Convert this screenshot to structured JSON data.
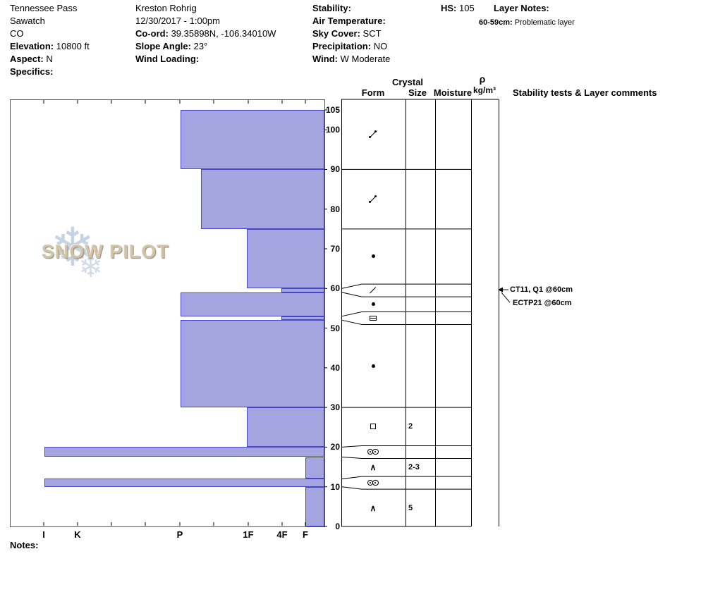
{
  "header": {
    "location": {
      "name": "Tennessee Pass",
      "range": "Sawatch",
      "state": "CO",
      "elevation_label": "Elevation:",
      "elevation_value": "10800 ft",
      "aspect_label": "Aspect:",
      "aspect_value": "N",
      "specifics_label": "Specifics:",
      "specifics_value": ""
    },
    "observer": {
      "name": "Kreston Rohrig",
      "datetime": "12/30/2017 - 1:00pm",
      "coord_label": "Co-ord:",
      "coord_value": "39.35898N, -106.34010W",
      "slope_angle_label": "Slope Angle:",
      "slope_angle_value": "23°",
      "wind_loading_label": "Wind Loading:",
      "wind_loading_value": ""
    },
    "conditions": {
      "stability_label": "Stability:",
      "stability_value": "",
      "air_temp_label": "Air Temperature:",
      "air_temp_value": "",
      "sky_cover_label": "Sky Cover:",
      "sky_cover_value": "SCT",
      "precipitation_label": "Precipitation:",
      "precipitation_value": "NO",
      "wind_label": "Wind:",
      "wind_value": "W Moderate"
    },
    "hs_label": "HS:",
    "hs_value": "105",
    "layer_notes": {
      "title": "Layer Notes:",
      "note_range": "60-59cm:",
      "note_text": "Problematic layer"
    }
  },
  "logo": {
    "word1": "SNOW",
    "word2": "PILOT"
  },
  "icons": {
    "snowflake": "❄",
    "depth_hoar_caret": "∧"
  },
  "table_headers": {
    "crystal": "Crystal",
    "form": "Form",
    "size": "Size",
    "moisture": "Moisture",
    "density_symbol": "ρ",
    "density_units": "kg/m³",
    "comments": "Stability tests & Layer comments"
  },
  "notes_label": "Notes:",
  "chart_data": {
    "type": "bar",
    "title": "Snow pit hardness profile",
    "depth_unit": "cm",
    "total_depth_hs": 105,
    "ylim": [
      0,
      105
    ],
    "y_ticks": [
      105,
      100,
      90,
      80,
      70,
      60,
      50,
      40,
      30,
      20,
      10,
      0
    ],
    "hardness_axis_labels": [
      "I",
      "K",
      "P",
      "1F",
      "4F",
      "F"
    ],
    "layers": [
      {
        "top": 105,
        "bottom": 90,
        "hardness": "P",
        "form": "df",
        "form_name": "decomposing-fragments"
      },
      {
        "top": 90,
        "bottom": 75,
        "hardness": "P-",
        "form": "df",
        "form_name": "decomposing-fragments"
      },
      {
        "top": 75,
        "bottom": 60,
        "hardness": "1F",
        "form": "rg",
        "form_name": "rounded-grains"
      },
      {
        "top": 60,
        "bottom": 59,
        "hardness": "4F",
        "form": "slash",
        "form_name": "problem-layer-grain",
        "thin": true
      },
      {
        "top": 59,
        "bottom": 53,
        "hardness": "P",
        "form": "rg",
        "form_name": "rounded-grains"
      },
      {
        "top": 53,
        "bottom": 52,
        "hardness": "4F",
        "form": "ih",
        "form_name": "ice-lens",
        "thin": true
      },
      {
        "top": 52,
        "bottom": 30,
        "hardness": "P",
        "form": "rg",
        "form_name": "rounded-grains"
      },
      {
        "top": 30,
        "bottom": 20,
        "hardness": "1F",
        "form": "fc",
        "form_name": "facets",
        "size": "2"
      },
      {
        "top": 20,
        "bottom": 17.5,
        "hardness": "I",
        "form": "mf",
        "form_name": "melt-forms",
        "thin": true
      },
      {
        "top": 17.5,
        "bottom": 12,
        "hardness": "F",
        "form": "dh",
        "form_name": "depth-hoar",
        "size": "2-3"
      },
      {
        "top": 12,
        "bottom": 10,
        "hardness": "I",
        "form": "mf",
        "form_name": "melt-forms",
        "thin": true
      },
      {
        "top": 10,
        "bottom": 0,
        "hardness": "F",
        "form": "dh",
        "form_name": "depth-hoar",
        "size": "5"
      }
    ],
    "stability_tests": [
      "CT11, Q1 @60cm",
      "ECTP21 @60cm"
    ]
  }
}
